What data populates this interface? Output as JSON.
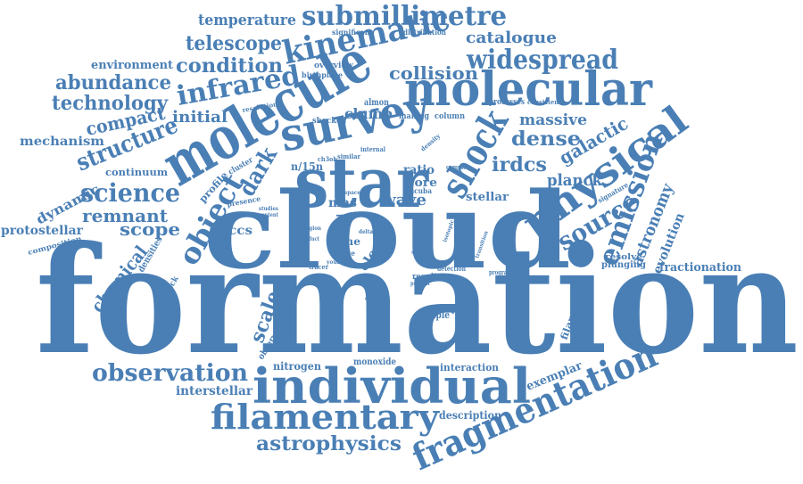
{
  "color": "#4a7fb5",
  "words": [
    "formation",
    "cloud",
    "star",
    "molecule",
    "individual",
    "molecular",
    "survey",
    "filamentary",
    "fragmentation",
    "kinematic",
    "submillimetre",
    "physical",
    "shock",
    "object",
    "science",
    "infrared",
    "widespread",
    "observation",
    "emission",
    "astrophysics",
    "source",
    "structure",
    "condition",
    "telescope",
    "abundance",
    "technology",
    "catalogue",
    "temperature",
    "compact",
    "collision",
    "initial",
    "dark",
    "dense",
    "irdcs",
    "remnant",
    "scope",
    "massive",
    "galactic",
    "planck",
    "astronomy",
    "scale",
    "chemical",
    "dynamic",
    "protostellar",
    "mechanism",
    "environment",
    "continuum",
    "pgccs",
    "clump",
    "ratio",
    "core",
    "wave",
    "mas",
    "clerk",
    "line",
    "stellar",
    "interstellar",
    "nitrogen",
    "monoxide",
    "interaction",
    "exemplar",
    "description",
    "fractionation",
    "evolution",
    "plunging",
    "resolve",
    "filament",
    "sample",
    "velocity",
    "observed",
    "feedback",
    "densities",
    "composition",
    "profile",
    "cluster",
    "presence",
    "n/15n",
    "almon",
    "shocked",
    "making",
    "column",
    "overview",
    "birthplace",
    "significant",
    "distribution",
    "processes",
    "consistent",
    "resolution",
    "internal",
    "ch3oh",
    "similar",
    "density",
    "complex",
    "scuba",
    "signature",
    "result",
    "detection",
    "program",
    "tracer",
    "present",
    "spatial",
    "cold",
    "stage",
    "young",
    "region",
    "space",
    "transition",
    "isotopic",
    "activity",
    "studies",
    "content",
    "delta",
    "nh2d",
    "product"
  ]
}
